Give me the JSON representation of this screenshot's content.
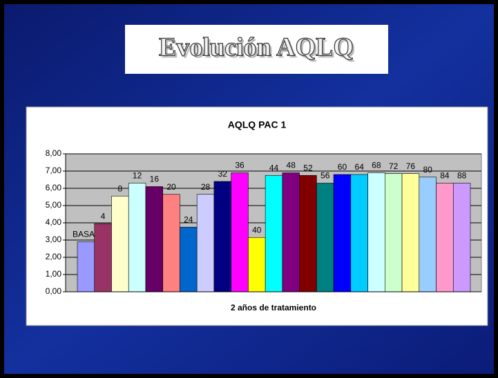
{
  "header": {
    "title": "Evolución AQLQ"
  },
  "chart_data": {
    "type": "bar",
    "title": "AQLQ PAC 1",
    "x_label": "2 años de tratamiento",
    "categories": [
      "BASAL",
      "4",
      "8",
      "12",
      "16",
      "20",
      "24",
      "28",
      "32",
      "36",
      "40",
      "44",
      "48",
      "52",
      "56",
      "60",
      "64",
      "68",
      "72",
      "76",
      "80",
      "84",
      "88"
    ],
    "values": [
      2.9,
      3.95,
      5.55,
      6.3,
      6.1,
      5.65,
      3.75,
      5.65,
      6.4,
      6.9,
      3.15,
      6.75,
      6.9,
      6.75,
      6.3,
      6.8,
      6.8,
      6.9,
      6.85,
      6.85,
      6.65,
      6.3,
      6.3
    ],
    "colors": [
      "#9999ff",
      "#993366",
      "#ffffcc",
      "#ccffff",
      "#660066",
      "#ff8080",
      "#0066cc",
      "#ccccff",
      "#000080",
      "#ff00ff",
      "#ffff00",
      "#00ffff",
      "#800080",
      "#800000",
      "#008080",
      "#0000ff",
      "#00ccff",
      "#ccffff",
      "#ccffcc",
      "#ffff99",
      "#99ccff",
      "#ff99cc",
      "#cc99ff"
    ],
    "ylim": [
      0,
      8
    ],
    "yticks": [
      {
        "value": 0,
        "label": "0,00"
      },
      {
        "value": 1,
        "label": "1,00"
      },
      {
        "value": 2,
        "label": "2,00"
      },
      {
        "value": 3,
        "label": "3,00"
      },
      {
        "value": 4,
        "label": "4,00"
      },
      {
        "value": 5,
        "label": "5,00"
      },
      {
        "value": 6,
        "label": "6,00"
      },
      {
        "value": 7,
        "label": "7,00"
      },
      {
        "value": 8,
        "label": "8,00"
      }
    ],
    "grid": true
  }
}
